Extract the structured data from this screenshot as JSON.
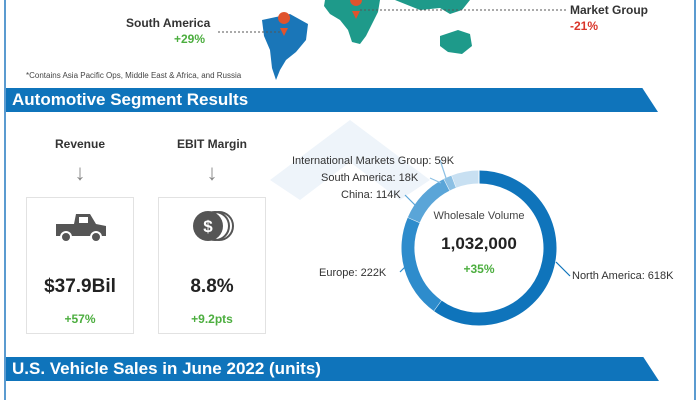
{
  "map": {
    "south_america": {
      "label": "South America",
      "change": "+29%"
    },
    "img": {
      "label": "Market Group",
      "change": "-21%"
    },
    "footnote": "*Contains  Asia Pacific Ops, Middle East & Africa, and Russia",
    "colors": {
      "south_america": "#1a76b8",
      "africa_asia": "#1e9a8a",
      "pin": "#e0532d"
    }
  },
  "section1": {
    "title": "Automotive Segment Results"
  },
  "cards": [
    {
      "label": "Revenue",
      "icon": "pickup-truck-icon",
      "value": "$37.9Bil",
      "change": "+57%"
    },
    {
      "label": "EBIT Margin",
      "icon": "dollar-coins-icon",
      "value": "8.8%",
      "change": "+9.2pts"
    }
  ],
  "chart_data": {
    "type": "pie",
    "donut": true,
    "center_title": "Wholesale Volume",
    "center_value": "1,032,000",
    "center_change": "+35%",
    "slices": [
      {
        "label": "North America: 618K",
        "value": 618,
        "color": "#0f74bb"
      },
      {
        "label": "Europe: 222K",
        "value": 222,
        "color": "#2e8ccc"
      },
      {
        "label": "China: 114K",
        "value": 114,
        "color": "#5aa5d8"
      },
      {
        "label": "South America: 18K",
        "value": 18,
        "color": "#8cc0e4"
      },
      {
        "label": "International Markets Group: 59K",
        "value": 59,
        "color": "#c8e0f2"
      }
    ]
  },
  "section2": {
    "title": "U.S. Vehicle Sales in June 2022  (units)"
  }
}
